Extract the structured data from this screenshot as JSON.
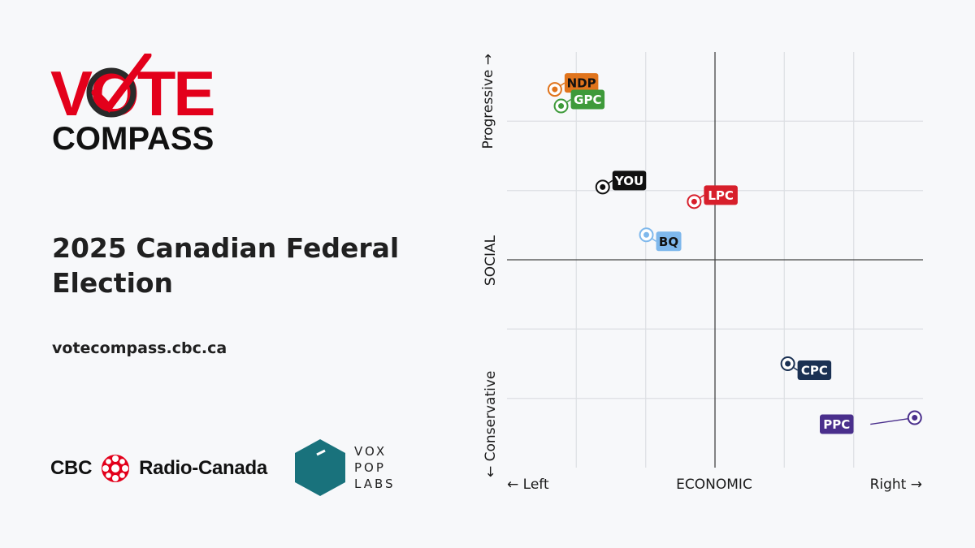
{
  "logo": {
    "line1": "VOTE",
    "line2": "COMPASS"
  },
  "title": "2025 Canadian Federal Election",
  "url": "votecompass.cbc.ca",
  "sponsors": {
    "cbc": {
      "left_text": "CBC",
      "right_text": "Radio-Canada"
    },
    "vox": {
      "line1": "VOX",
      "line2": "POP",
      "line3": "LABS"
    }
  },
  "chart_data": {
    "type": "scatter",
    "title": "",
    "xlabel": "ECONOMIC",
    "ylabel": "SOCIAL",
    "x_left_label": "← Left",
    "x_right_label": "Right →",
    "y_top_label": "Progressive →",
    "y_bottom_label": "← Conservative",
    "xlim": [
      -10,
      10
    ],
    "ylim": [
      -10,
      10
    ],
    "grid": true,
    "points": [
      {
        "label": "NDP",
        "x": -7.7,
        "y": 8.2,
        "color": "#e0741c",
        "text_color": "#111111"
      },
      {
        "label": "GPC",
        "x": -7.4,
        "y": 7.4,
        "color": "#3e9a3a",
        "text_color": "#ffffff"
      },
      {
        "label": "YOU",
        "x": -5.4,
        "y": 3.5,
        "color": "#111111",
        "text_color": "#ffffff"
      },
      {
        "label": "LPC",
        "x": -1.0,
        "y": 2.8,
        "color": "#d71f2b",
        "text_color": "#ffffff"
      },
      {
        "label": "BQ",
        "x": -3.3,
        "y": 1.2,
        "color": "#7fb8ec",
        "text_color": "#111111"
      },
      {
        "label": "CPC",
        "x": 3.5,
        "y": -5.0,
        "color": "#1b3153",
        "text_color": "#ffffff"
      },
      {
        "label": "PPC",
        "x": 9.6,
        "y": -7.6,
        "color": "#4a2f8c",
        "text_color": "#ffffff"
      }
    ]
  }
}
